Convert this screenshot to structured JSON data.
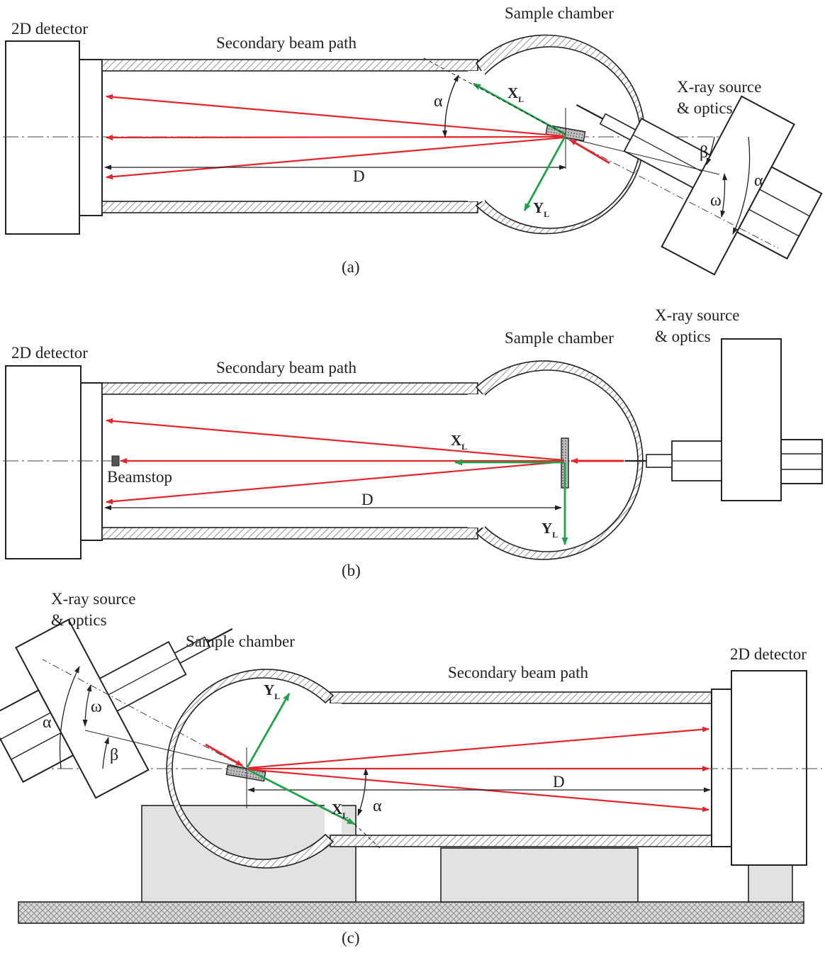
{
  "panels": [
    {
      "id": "a",
      "caption": "(a)",
      "detector_label": "2D detector",
      "beam_path_label": "Secondary beam path",
      "chamber_label": "Sample chamber",
      "source_label_line1": "X-ray source",
      "source_label_line2": "& optics",
      "distance_label": "D",
      "x_axis_main": "X",
      "x_axis_sub": "L",
      "y_axis_main": "Y",
      "y_axis_sub": "L",
      "alpha_label": "α",
      "alpha_label_2": "α",
      "beta_label": "β",
      "omega_label": "ω"
    },
    {
      "id": "b",
      "caption": "(b)",
      "detector_label": "2D detector",
      "beam_path_label": "Secondary beam path",
      "chamber_label": "Sample chamber",
      "source_label_line1": "X-ray source",
      "source_label_line2": "& optics",
      "distance_label": "D",
      "x_axis_main": "X",
      "x_axis_sub": "L",
      "y_axis_main": "Y",
      "y_axis_sub": "L",
      "beamstop_label": "Beamstop"
    },
    {
      "id": "c",
      "caption": "(c)",
      "detector_label": "2D detector",
      "beam_path_label": "Secondary beam path",
      "chamber_label": "Sample chamber",
      "source_label_line1": "X-ray source",
      "source_label_line2": "& optics",
      "distance_label": "D",
      "x_axis_main": "X",
      "x_axis_sub": "L",
      "y_axis_main": "Y",
      "y_axis_sub": "L",
      "alpha_label": "α",
      "alpha_label_2": "α",
      "beta_label": "β",
      "omega_label": "ω"
    }
  ],
  "colors": {
    "diffracted_beam": "#e3262b",
    "lab_axes": "#1fa24a",
    "outline": "#222222",
    "support": "#e2e2e2"
  }
}
